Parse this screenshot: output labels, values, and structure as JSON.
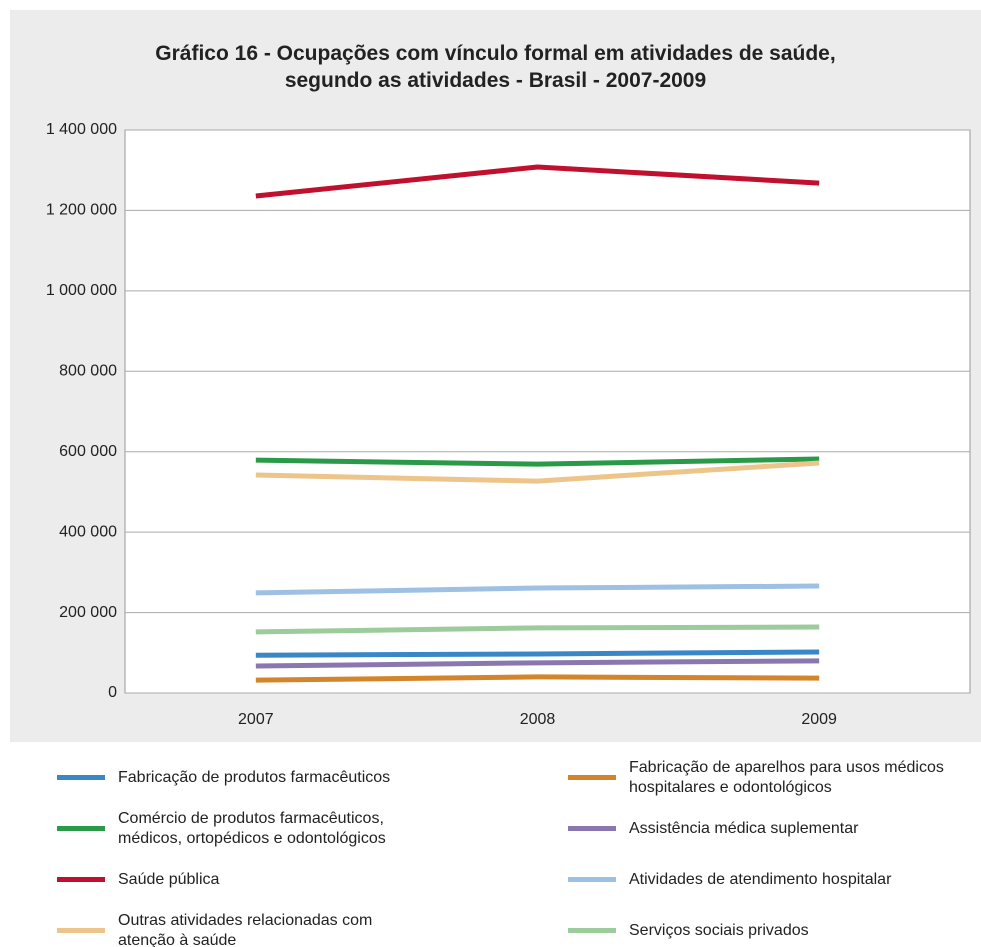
{
  "chart_data": {
    "type": "line",
    "title": "Gráfico 16 - Ocupações com vínculo formal em atividades de saúde, segundo as atividades - Brasil - 2007-2009",
    "categories": [
      "2007",
      "2008",
      "2009"
    ],
    "ylim": [
      0,
      1400000
    ],
    "yticks": [
      0,
      {
        "value": 200000,
        "label": "200 000"
      },
      {
        "value": 400000,
        "label": "400 000"
      },
      {
        "value": 600000,
        "label": "600 000"
      },
      {
        "value": 800000,
        "label": "800 000"
      },
      {
        "value": 1000000,
        "label": "1 000 000"
      },
      {
        "value": 1200000,
        "label": "1 200 000"
      },
      {
        "value": 1400000,
        "label": "1 400 000"
      }
    ],
    "grid": true,
    "legend": "bottom",
    "series": [
      {
        "name": "Fabricação de produtos farmacêuticos",
        "color": "#3a87c8",
        "values": [
          94000,
          97000,
          102000
        ]
      },
      {
        "name": "Fabricação de aparelhos para usos médicos hospitalares e odontológicos",
        "color": "#d4842a",
        "values": [
          32000,
          40000,
          37000
        ]
      },
      {
        "name": "Comércio de produtos farmacêuticos, médicos, ortopédicos e odontológicos",
        "color": "#2a9a48",
        "values": [
          579000,
          569000,
          582000
        ]
      },
      {
        "name": "Assistência médica suplementar",
        "color": "#8a77b0",
        "values": [
          67000,
          75000,
          80000
        ]
      },
      {
        "name": "Saúde pública",
        "color": "#c0102e",
        "values": [
          1236000,
          1308000,
          1268000
        ]
      },
      {
        "name": "Atividades de atendimento hospitalar",
        "color": "#9ec0e2",
        "values": [
          249000,
          261000,
          266000
        ]
      },
      {
        "name": "Outras atividades relacionadas com atenção à saúde",
        "color": "#edc48a",
        "values": [
          542000,
          527000,
          572000
        ]
      },
      {
        "name": "Serviços sociais privados",
        "color": "#9ccb9c",
        "values": [
          152000,
          162000,
          164000
        ]
      }
    ]
  }
}
